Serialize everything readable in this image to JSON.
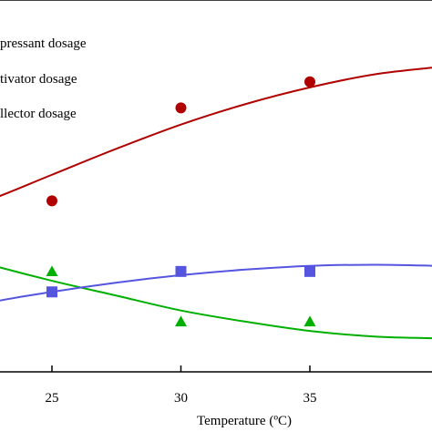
{
  "chart_data": {
    "type": "scatter",
    "xlabel": "Temperature (ºC)",
    "xlim": [
      20,
      40
    ],
    "ylim": [
      0,
      100
    ],
    "x_ticks": [
      25,
      30,
      35
    ],
    "grid": false,
    "legend_position": "top-left",
    "series": [
      {
        "name": "pressant dosage",
        "color": "#b00000",
        "marker": "circle",
        "points": [
          {
            "x": 25,
            "y": 46
          },
          {
            "x": 30,
            "y": 71
          },
          {
            "x": 35,
            "y": 78
          }
        ],
        "fit": [
          {
            "x": 20,
            "y": 40
          },
          {
            "x": 22.5,
            "y": 46
          },
          {
            "x": 25,
            "y": 53
          },
          {
            "x": 27.5,
            "y": 60
          },
          {
            "x": 30,
            "y": 66.5
          },
          {
            "x": 32.5,
            "y": 72
          },
          {
            "x": 35,
            "y": 76.5
          },
          {
            "x": 37.5,
            "y": 80
          },
          {
            "x": 40,
            "y": 82
          }
        ]
      },
      {
        "name": "tivator dosage",
        "color": "#00b000",
        "marker": "triangle",
        "points": [
          {
            "x": 25,
            "y": 27
          },
          {
            "x": 30,
            "y": 13.5
          },
          {
            "x": 35,
            "y": 13.5
          }
        ],
        "fit": [
          {
            "x": 20,
            "y": 34
          },
          {
            "x": 22.5,
            "y": 29
          },
          {
            "x": 25,
            "y": 24.5
          },
          {
            "x": 27.5,
            "y": 20.5
          },
          {
            "x": 30,
            "y": 16.5
          },
          {
            "x": 32.5,
            "y": 13.5
          },
          {
            "x": 35,
            "y": 11
          },
          {
            "x": 37.5,
            "y": 9.5
          },
          {
            "x": 40,
            "y": 9
          }
        ]
      },
      {
        "name": "llector dosage",
        "color": "#5555e0",
        "marker": "square",
        "points": [
          {
            "x": 25,
            "y": 21.5
          },
          {
            "x": 30,
            "y": 27
          },
          {
            "x": 35,
            "y": 27
          }
        ],
        "fit": [
          {
            "x": 20,
            "y": 14
          },
          {
            "x": 22.5,
            "y": 18.5
          },
          {
            "x": 25,
            "y": 21.5
          },
          {
            "x": 27.5,
            "y": 24
          },
          {
            "x": 30,
            "y": 26
          },
          {
            "x": 32.5,
            "y": 27.5
          },
          {
            "x": 35,
            "y": 28.5
          },
          {
            "x": 37.5,
            "y": 28.8
          },
          {
            "x": 40,
            "y": 28.5
          }
        ]
      }
    ]
  }
}
